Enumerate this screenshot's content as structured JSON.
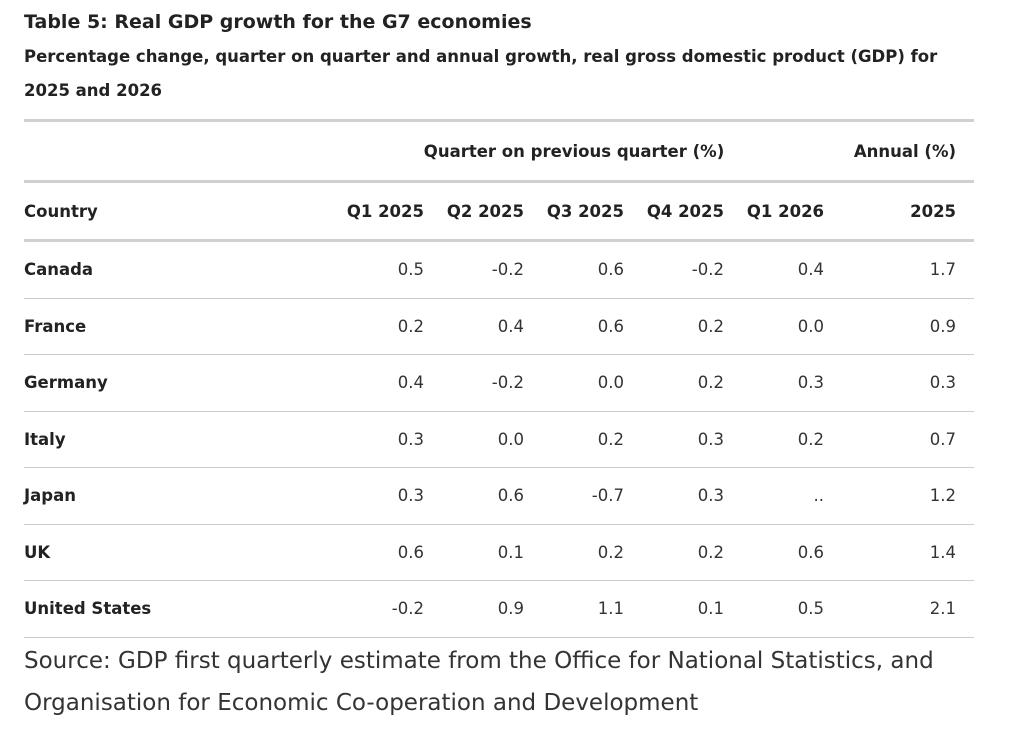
{
  "title": "Table 5: Real GDP growth for the G7 economies",
  "subtitle": "Percentage change, quarter on quarter and annual growth, real gross domestic product (GDP) for 2025 and 2026",
  "table": {
    "group_headers": {
      "quarterly": "Quarter on previous quarter (%)",
      "annual": "Annual (%)"
    },
    "columns": [
      "Country",
      "Q1 2025",
      "Q2 2025",
      "Q3 2025",
      "Q4 2025",
      "Q1 2026",
      "2025"
    ],
    "rows": [
      {
        "country": "Canada",
        "values": [
          "0.5",
          "-0.2",
          "0.6",
          "-0.2",
          "0.4",
          "1.7"
        ]
      },
      {
        "country": "France",
        "values": [
          "0.2",
          "0.4",
          "0.6",
          "0.2",
          "0.0",
          "0.9"
        ]
      },
      {
        "country": "Germany",
        "values": [
          "0.4",
          "-0.2",
          "0.0",
          "0.2",
          "0.3",
          "0.3"
        ]
      },
      {
        "country": "Italy",
        "values": [
          "0.3",
          "0.0",
          "0.2",
          "0.3",
          "0.2",
          "0.7"
        ]
      },
      {
        "country": "Japan",
        "values": [
          "0.3",
          "0.6",
          "-0.7",
          "0.3",
          "..",
          "1.2"
        ]
      },
      {
        "country": "UK",
        "values": [
          "0.6",
          "0.1",
          "0.2",
          "0.2",
          "0.6",
          "1.4"
        ]
      },
      {
        "country": "United States",
        "values": [
          "-0.2",
          "0.9",
          "1.1",
          "0.1",
          "0.5",
          "2.1"
        ]
      }
    ]
  },
  "source": "Source: GDP first quarterly estimate from the Office for National Statistics, and Organisation for Economic Co-operation and Development"
}
